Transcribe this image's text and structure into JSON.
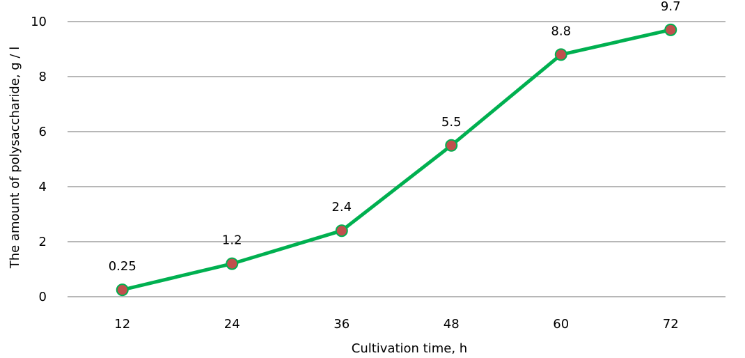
{
  "chart_data": {
    "type": "line",
    "title": "",
    "xlabel": "Cultivation time, h",
    "ylabel": "The amount of polysaccharide, g / l",
    "categories": [
      "12",
      "24",
      "36",
      "48",
      "60",
      "72"
    ],
    "series": [
      {
        "values": [
          0.25,
          1.2,
          2.4,
          5.5,
          8.8,
          9.7
        ],
        "data_labels": [
          "0.25",
          "1.2",
          "2.4",
          "5.5",
          "8.8",
          "9.7"
        ],
        "line_color": "#00b050",
        "marker_color": "#c0504d"
      }
    ],
    "ylim": [
      0,
      10
    ],
    "y_ticks": [
      "0",
      "2",
      "4",
      "6",
      "8",
      "10"
    ],
    "grid": "horizontal",
    "grid_color": "#8c8c8c",
    "legend": "none"
  }
}
